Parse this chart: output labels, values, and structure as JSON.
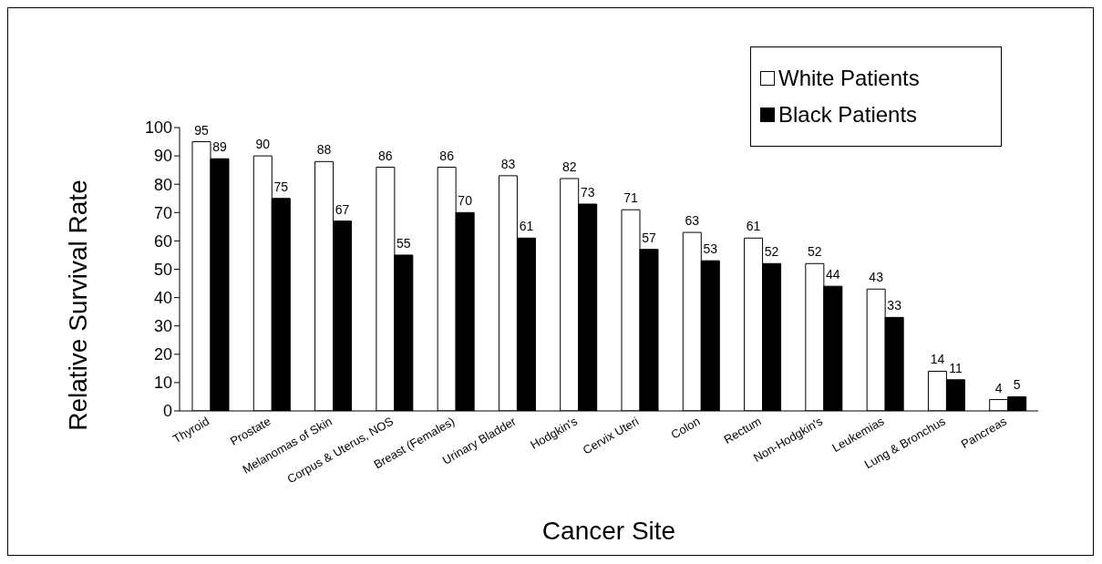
{
  "chart_data": {
    "type": "bar",
    "xlabel": "Cancer Site",
    "ylabel": "Relative Survival Rate",
    "categories": [
      "Thyroid",
      "Prostate",
      "Melanomas of Skin",
      "Corpus & Uterus, NOS",
      "Breast (Females)",
      "Urinary Bladder",
      "Hodgkin's",
      "Cervix Uteri",
      "Colon",
      "Rectum",
      "Non-Hodgkin's",
      "Leukemias",
      "Lung & Bronchus",
      "Pancreas"
    ],
    "series": [
      {
        "name": "White Patients",
        "color": "#ffffff",
        "values": [
          95,
          90,
          88,
          86,
          86,
          83,
          82,
          71,
          63,
          61,
          52,
          43,
          14,
          4
        ]
      },
      {
        "name": "Black Patients",
        "color": "#000000",
        "values": [
          89,
          75,
          67,
          55,
          70,
          61,
          73,
          57,
          53,
          52,
          44,
          33,
          11,
          5
        ]
      }
    ],
    "ylim": [
      0,
      100
    ],
    "yticks": [
      0,
      10,
      20,
      30,
      40,
      50,
      60,
      70,
      80,
      90,
      100
    ],
    "grid": false,
    "legend": "top right",
    "data_labels": true
  }
}
